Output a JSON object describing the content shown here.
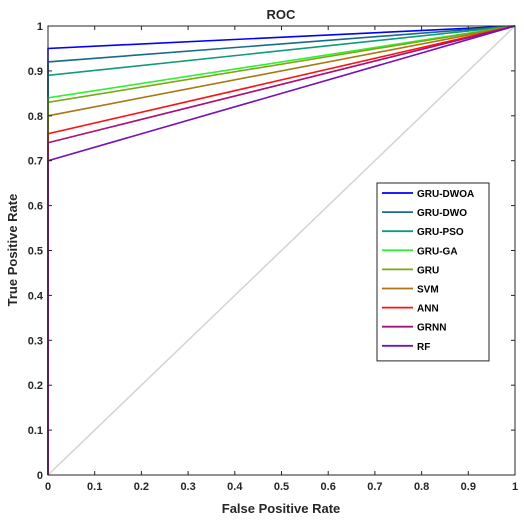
{
  "chart_data": {
    "type": "line",
    "title": "ROC",
    "xlabel": "False Positive Rate",
    "ylabel": "True Positive Rate",
    "xlim": [
      0,
      1
    ],
    "ylim": [
      0,
      1
    ],
    "x_ticks": [
      "0",
      "0.1",
      "0.2",
      "0.3",
      "0.4",
      "0.5",
      "0.6",
      "0.7",
      "0.8",
      "0.9",
      "1"
    ],
    "y_ticks": [
      "0",
      "0.1",
      "0.2",
      "0.3",
      "0.4",
      "0.5",
      "0.6",
      "0.7",
      "0.8",
      "0.9",
      "1"
    ],
    "grid": false,
    "legend_position": "right",
    "reference_line": {
      "x": [
        0,
        1
      ],
      "y": [
        0,
        1
      ],
      "color": "#d3d3d3"
    },
    "series": [
      {
        "name": "GRU-DWOA",
        "color": "#0000ff",
        "x": [
          0,
          0,
          1
        ],
        "y": [
          0,
          0.95,
          1
        ]
      },
      {
        "name": "GRU-DWO",
        "color": "#1a6b8a",
        "x": [
          0,
          0,
          1
        ],
        "y": [
          0,
          0.92,
          1
        ]
      },
      {
        "name": "GRU-PSO",
        "color": "#0f9a7a",
        "x": [
          0,
          0,
          1
        ],
        "y": [
          0,
          0.89,
          1
        ]
      },
      {
        "name": "GRU-GA",
        "color": "#33ee33",
        "x": [
          0,
          0,
          1
        ],
        "y": [
          0,
          0.84,
          1
        ]
      },
      {
        "name": "GRU",
        "color": "#77aa11",
        "x": [
          0,
          0,
          1
        ],
        "y": [
          0,
          0.83,
          1
        ]
      },
      {
        "name": "SVM",
        "color": "#aa7711",
        "x": [
          0,
          0,
          1
        ],
        "y": [
          0,
          0.8,
          1
        ]
      },
      {
        "name": "ANN",
        "color": "#ff1111",
        "x": [
          0,
          0,
          1
        ],
        "y": [
          0,
          0.76,
          1
        ]
      },
      {
        "name": "GRNN",
        "color": "#aa1177",
        "x": [
          0,
          0,
          1
        ],
        "y": [
          0,
          0.74,
          1
        ]
      },
      {
        "name": "RF",
        "color": "#7711bb",
        "x": [
          0,
          0,
          1
        ],
        "y": [
          0,
          0.7,
          1
        ]
      }
    ]
  }
}
